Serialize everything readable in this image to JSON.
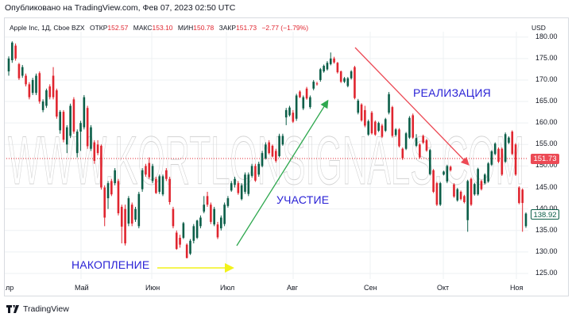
{
  "published": "Опубликовано на TradingView.com, Фев 07, 2023 02:50 UTC",
  "legend": {
    "symbol": "Apple Inc, 1Д, Cboe BZX",
    "open_label": "ОТКР",
    "open": "152.57",
    "high_label": "МАКС",
    "high": "153.10",
    "low_label": "МИН",
    "low": "150.78",
    "close_label": "ЗАКР",
    "close": "151.73",
    "change": "−2.77 (−1.79%)"
  },
  "price_axis": {
    "currency": "USD",
    "ticks": [
      "180.00",
      "175.00",
      "170.00",
      "165.00",
      "160.00",
      "155.00",
      "150.00",
      "145.00",
      "140.00",
      "135.00",
      "130.00",
      "125.00"
    ],
    "current_price": "151.73",
    "last_price": "138.92"
  },
  "time_axis": {
    "labels": [
      "лр",
      "Май",
      "Июн",
      "Июл",
      "Авг",
      "Сен",
      "Окт",
      "Ноя"
    ]
  },
  "annotations": {
    "accumulation": "НАКОПЛЕНИЕ",
    "participation": "УЧАСТИЕ",
    "distribution": "РЕАЛИЗАЦИЯ"
  },
  "watermark": "WWW.KORTLONSIGNALS.COM",
  "footer": {
    "brand": "TradingView"
  },
  "colors": {
    "up": "#0b5e48",
    "down": "#e0252f",
    "annotation_text": "#2a22d6",
    "arrow_accumulation": "#f2f21a",
    "arrow_participation": "#2fa84f",
    "arrow_distribution": "#ec4a55"
  },
  "chart_data": {
    "type": "candlestick",
    "ylim": [
      125,
      180
    ],
    "grid": true,
    "candles": [
      [
        172,
        175.5,
        171,
        175
      ],
      [
        174.6,
        179,
        174,
        178.7
      ],
      [
        178,
        178.5,
        174.5,
        175
      ],
      [
        173.7,
        174,
        170,
        170.4
      ],
      [
        171,
        173.5,
        170.5,
        173
      ],
      [
        171,
        171.5,
        168.5,
        169
      ],
      [
        169,
        169.5,
        165.5,
        166
      ],
      [
        167,
        170.5,
        166.5,
        170
      ],
      [
        167,
        171.5,
        166.5,
        171
      ],
      [
        171.6,
        172,
        164.5,
        165
      ],
      [
        163,
        165.5,
        162.5,
        165
      ],
      [
        164,
        168,
        163.5,
        167.6
      ],
      [
        168.5,
        169,
        165.5,
        166
      ],
      [
        171,
        173,
        165.5,
        166
      ],
      [
        167.6,
        168,
        161,
        161.5
      ],
      [
        158.3,
        163,
        157.5,
        162.6
      ],
      [
        162.6,
        163,
        155.5,
        156.1
      ],
      [
        155,
        159.5,
        153,
        159
      ],
      [
        157,
        164.5,
        156.5,
        164
      ],
      [
        165.5,
        166,
        157.5,
        158
      ],
      [
        153,
        158.5,
        152,
        158
      ],
      [
        158,
        160.5,
        153.5,
        160
      ],
      [
        159,
        166.5,
        158.5,
        166
      ],
      [
        163.5,
        164,
        154,
        154.6
      ],
      [
        154,
        159.5,
        153.5,
        159
      ],
      [
        155.5,
        156,
        150.5,
        151.2
      ],
      [
        155,
        156,
        152.5,
        153
      ],
      [
        154.7,
        155,
        144.5,
        145
      ],
      [
        145,
        145.5,
        136,
        138
      ],
      [
        142.5,
        146.5,
        140,
        146
      ],
      [
        146.5,
        147,
        143,
        143.4
      ],
      [
        146,
        149.5,
        145.5,
        149
      ],
      [
        146.5,
        147,
        138.5,
        139
      ],
      [
        140.5,
        141,
        132,
        135.9
      ],
      [
        140,
        141,
        131.5,
        132
      ],
      [
        136.6,
        143,
        136,
        142.5
      ],
      [
        141,
        141.5,
        136,
        136.6
      ],
      [
        137.5,
        140.5,
        137,
        140
      ],
      [
        136,
        144,
        135.5,
        143.5
      ],
      [
        144.6,
        149.5,
        144,
        149
      ],
      [
        150,
        150.5,
        147.5,
        148
      ],
      [
        150.7,
        152,
        147,
        147.4
      ],
      [
        146.5,
        150.5,
        146,
        150
      ],
      [
        147,
        147.5,
        143.5,
        143.7
      ],
      [
        144,
        148,
        143.5,
        147.6
      ],
      [
        143.4,
        148,
        143,
        147.6
      ],
      [
        149,
        149.5,
        146.5,
        147
      ],
      [
        147,
        147.5,
        141,
        141.6
      ],
      [
        140,
        140.5,
        135.5,
        136
      ],
      [
        134.5,
        135,
        130.5,
        130.7
      ],
      [
        133.3,
        134,
        131,
        131.7
      ],
      [
        133.3,
        137,
        133,
        136.7
      ],
      [
        131.7,
        132,
        128.5,
        128.6
      ],
      [
        129.6,
        133,
        129.3,
        132.6
      ],
      [
        132.6,
        136.5,
        132,
        136
      ],
      [
        133.3,
        137.5,
        133,
        137.3
      ],
      [
        136,
        138.5,
        135.5,
        138
      ],
      [
        139.4,
        143,
        139,
        141
      ],
      [
        143,
        144,
        140.5,
        141
      ],
      [
        141,
        141.5,
        136.5,
        137
      ],
      [
        136.4,
        140.5,
        136,
        140
      ],
      [
        136.4,
        137,
        133,
        133.4
      ],
      [
        135.5,
        138.5,
        135,
        138
      ],
      [
        136.5,
        141.5,
        136,
        141
      ],
      [
        140.7,
        143,
        140.3,
        142.5
      ],
      [
        144.3,
        146.5,
        144,
        146
      ],
      [
        145.6,
        147.5,
        145,
        147
      ],
      [
        146,
        146.5,
        143.3,
        143.7
      ],
      [
        142.3,
        146,
        142,
        145.5
      ],
      [
        144,
        148.5,
        143.5,
        148
      ],
      [
        143.5,
        148.5,
        143,
        148
      ],
      [
        147.7,
        150.5,
        147.3,
        150
      ],
      [
        150,
        150.5,
        146.3,
        146.6
      ],
      [
        148,
        151,
        147.5,
        150.5
      ],
      [
        150,
        153.5,
        149.7,
        153
      ],
      [
        151.8,
        155.5,
        151.5,
        155
      ],
      [
        155.5,
        156,
        152.7,
        153
      ],
      [
        154.7,
        155,
        152,
        152.2
      ],
      [
        153.5,
        154,
        150.8,
        151.2
      ],
      [
        152.3,
        157.5,
        152,
        157
      ],
      [
        155,
        157.5,
        154.7,
        157
      ],
      [
        161.3,
        163.5,
        159.5,
        163
      ],
      [
        161.8,
        164,
        161.5,
        163.6
      ],
      [
        162.4,
        163,
        160,
        160.3
      ],
      [
        161,
        166.8,
        160.5,
        166.4
      ],
      [
        167.3,
        167.6,
        165.8,
        166
      ],
      [
        163.4,
        166.4,
        163,
        166
      ],
      [
        168,
        168.4,
        165.4,
        165.7
      ],
      [
        163.7,
        166.4,
        163.3,
        166
      ],
      [
        168,
        170,
        167.6,
        169.6
      ],
      [
        169.2,
        169.6,
        168.7,
        169
      ],
      [
        170,
        172.8,
        169.6,
        172.5
      ],
      [
        172,
        173.6,
        171.7,
        173.3
      ],
      [
        172.5,
        174.4,
        172.2,
        174
      ],
      [
        173.7,
        176.4,
        173.4,
        175
      ],
      [
        175,
        175.4,
        173.8,
        174.1
      ],
      [
        174,
        174.2,
        171.5,
        171.8
      ],
      [
        172,
        172.2,
        169.3,
        169.6
      ],
      [
        169.6,
        170.7,
        169.3,
        170.4
      ],
      [
        168.6,
        170.7,
        168.3,
        170.4
      ],
      [
        170.4,
        172.3,
        170.1,
        172
      ],
      [
        173,
        173.3,
        165.5,
        165.8
      ],
      [
        162.4,
        165.6,
        162,
        165.2
      ],
      [
        164.3,
        164.6,
        160.3,
        160.6
      ],
      [
        163,
        164,
        159,
        159.4
      ],
      [
        157.3,
        160.8,
        157,
        160.4
      ],
      [
        162.4,
        162.8,
        157.3,
        157.6
      ],
      [
        160.3,
        160.6,
        157,
        157.3
      ],
      [
        158.2,
        160.3,
        157.9,
        160
      ],
      [
        159.4,
        159.8,
        156.5,
        156.8
      ],
      [
        158.2,
        161.2,
        157.9,
        160.9
      ],
      [
        162.4,
        167.2,
        162,
        166.7
      ],
      [
        163.7,
        164,
        156.6,
        157
      ],
      [
        157.2,
        158.8,
        156.9,
        158.5
      ],
      [
        158.5,
        158.8,
        154.3,
        154.6
      ],
      [
        154,
        154.3,
        151.4,
        151.8
      ],
      [
        154,
        157.9,
        153.7,
        157.6
      ],
      [
        156.6,
        161.6,
        156.3,
        161.2
      ],
      [
        161.8,
        162.2,
        156.3,
        156.6
      ],
      [
        154.7,
        157.4,
        154.4,
        156.5
      ],
      [
        155,
        155.3,
        151.7,
        152
      ],
      [
        157,
        157.3,
        155.1,
        155.4
      ],
      [
        156,
        156.3,
        153.3,
        153.6
      ],
      [
        148.1,
        154,
        147.8,
        153.7
      ],
      [
        149,
        149.3,
        143.7,
        144
      ],
      [
        146,
        146.3,
        140.7,
        141
      ],
      [
        141,
        146.3,
        140.7,
        146
      ],
      [
        148,
        148.9,
        147.8,
        148.7
      ],
      [
        146.4,
        150.3,
        146,
        150
      ],
      [
        149.8,
        150.1,
        148.7,
        149
      ],
      [
        145.7,
        146,
        142.6,
        142.9
      ],
      [
        142,
        144.9,
        141.7,
        144.6
      ],
      [
        144,
        144.3,
        142,
        142.3
      ],
      [
        143,
        143.3,
        141.3,
        141.6
      ],
      [
        137.4,
        146.8,
        134.7,
        146.5
      ],
      [
        147,
        147.3,
        140.7,
        141
      ],
      [
        143.4,
        146.1,
        143.1,
        145.8
      ],
      [
        143.4,
        149.6,
        143.1,
        149.3
      ],
      [
        146.5,
        146.8,
        144.3,
        144.6
      ],
      [
        146,
        148.3,
        145.7,
        148
      ],
      [
        146.4,
        150.9,
        146.1,
        150.6
      ],
      [
        150.3,
        153.7,
        150,
        153.4
      ],
      [
        152.8,
        155.5,
        152.5,
        155.2
      ],
      [
        154,
        154.3,
        150.7,
        151
      ],
      [
        154,
        154.3,
        147.7,
        148
      ],
      [
        151,
        157.8,
        150.7,
        157.4
      ],
      [
        155.4,
        156.9,
        155.1,
        156.6
      ],
      [
        158,
        158.3,
        152.5,
        152.8
      ],
      [
        155,
        155.3,
        147.7,
        148
      ],
      [
        145,
        145.3,
        141.1,
        141.4
      ],
      [
        144.5,
        144.8,
        134.7,
        141.4
      ],
      [
        136,
        139.2,
        135.6,
        138.92
      ]
    ]
  }
}
